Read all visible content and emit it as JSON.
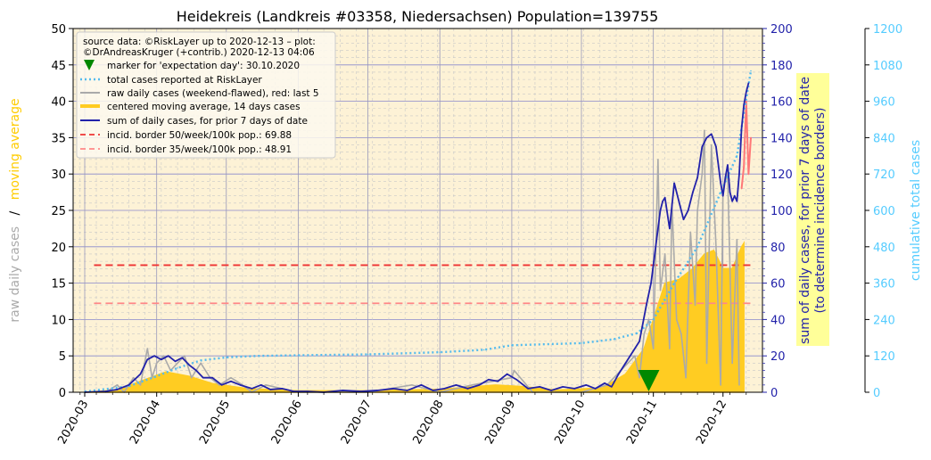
{
  "chart_data": {
    "type": "line",
    "title": "Heidekreis (Landkreis #03358, Niedersachsen) Population=139755",
    "x_range": [
      "2020-02-25",
      "2020-12-18"
    ],
    "x_ticks": [
      "2020-03",
      "2020-04",
      "2020-05",
      "2020-06",
      "2020-07",
      "2020-08",
      "2020-09",
      "2020-10",
      "2020-11",
      "2020-12"
    ],
    "axes": {
      "left": {
        "range": [
          0,
          50
        ],
        "ticks": [
          0,
          5,
          10,
          15,
          20,
          25,
          30,
          35,
          40,
          45,
          50
        ],
        "label_parts": [
          "raw daily cases",
          "/",
          "moving average"
        ],
        "colors": [
          "#aaaaaa",
          "#000000",
          "#ffcc00"
        ]
      },
      "right1": {
        "range": [
          0,
          200
        ],
        "ticks": [
          0,
          20,
          40,
          60,
          80,
          100,
          120,
          140,
          160,
          180,
          200
        ],
        "label_lines": [
          "sum of daily cases, for prior 7 days of date",
          "(to determine incidence borders)"
        ],
        "color": "#2222aa",
        "label_bg": "#ffff99"
      },
      "right2": {
        "range": [
          0,
          1200
        ],
        "ticks": [
          0,
          120,
          240,
          360,
          480,
          600,
          720,
          840,
          960,
          1080,
          1200
        ],
        "label": "cumulative total cases",
        "color": "#55ccff"
      }
    },
    "grid": true,
    "legend": {
      "position": "top-left",
      "source_lines": [
        "source data: ©RiskLayer up to 2020-12-13 – plot:",
        "©DrAndreasKruger (+contrib.) 2020-12-13 04:06"
      ],
      "entries": [
        {
          "label": "marker for 'expectation day': 30.10.2020",
          "style": "marker",
          "color": "#008800"
        },
        {
          "label": "total cases reported at RiskLayer",
          "style": "dotted",
          "color": "#55bbee"
        },
        {
          "label": "raw daily cases (weekend-flawed), red: last 5",
          "style": "line",
          "color": "#aaaaaa"
        },
        {
          "label": "centered moving average, 14 days cases",
          "style": "thick",
          "color": "#ffcc22"
        },
        {
          "label": "sum of daily cases, for prior 7 days of date",
          "style": "line",
          "color": "#2222aa"
        },
        {
          "label": "incid. border 50/week/100k pop.: 69.88",
          "style": "dashed",
          "color": "#ee3333"
        },
        {
          "label": "incid. border 35/week/100k pop.: 48.91",
          "style": "dashed",
          "color": "#ff8888"
        }
      ]
    },
    "incidence_borders": [
      {
        "value": 69.88,
        "axis": "right1",
        "color": "#ee3333",
        "x_from": "2020-03-05",
        "x_to": "2020-12-13"
      },
      {
        "value": 48.91,
        "axis": "right1",
        "color": "#ff8888",
        "x_from": "2020-03-05",
        "x_to": "2020-12-13"
      }
    ],
    "expectation_day": {
      "date": "2020-10-30",
      "value": 1.6,
      "axis": "left"
    },
    "series": [
      {
        "name": "sum of daily cases, for prior 7 days of date",
        "axis": "right1",
        "color": "#2222aa",
        "points": [
          [
            "2020-03-01",
            0
          ],
          [
            "2020-03-10",
            0.5
          ],
          [
            "2020-03-15",
            1.5
          ],
          [
            "2020-03-20",
            4
          ],
          [
            "2020-03-25",
            10
          ],
          [
            "2020-03-28",
            18
          ],
          [
            "2020-03-31",
            20
          ],
          [
            "2020-04-03",
            18
          ],
          [
            "2020-04-06",
            20
          ],
          [
            "2020-04-09",
            17
          ],
          [
            "2020-04-12",
            19
          ],
          [
            "2020-04-15",
            15
          ],
          [
            "2020-04-18",
            12
          ],
          [
            "2020-04-21",
            8
          ],
          [
            "2020-04-25",
            8
          ],
          [
            "2020-04-29",
            4
          ],
          [
            "2020-05-03",
            6
          ],
          [
            "2020-05-07",
            4
          ],
          [
            "2020-05-12",
            2
          ],
          [
            "2020-05-16",
            4
          ],
          [
            "2020-05-20",
            1.5
          ],
          [
            "2020-05-25",
            2
          ],
          [
            "2020-05-30",
            0.5
          ],
          [
            "2020-06-05",
            0.5
          ],
          [
            "2020-06-12",
            0
          ],
          [
            "2020-06-20",
            1
          ],
          [
            "2020-06-28",
            0.5
          ],
          [
            "2020-07-05",
            1
          ],
          [
            "2020-07-12",
            2
          ],
          [
            "2020-07-18",
            1
          ],
          [
            "2020-07-24",
            4
          ],
          [
            "2020-07-29",
            1
          ],
          [
            "2020-08-03",
            2
          ],
          [
            "2020-08-08",
            4
          ],
          [
            "2020-08-13",
            2
          ],
          [
            "2020-08-18",
            4
          ],
          [
            "2020-08-22",
            7
          ],
          [
            "2020-08-26",
            6
          ],
          [
            "2020-08-30",
            10
          ],
          [
            "2020-09-03",
            7
          ],
          [
            "2020-09-08",
            2
          ],
          [
            "2020-09-13",
            3
          ],
          [
            "2020-09-18",
            1
          ],
          [
            "2020-09-23",
            3
          ],
          [
            "2020-09-28",
            2
          ],
          [
            "2020-10-03",
            4
          ],
          [
            "2020-10-07",
            2
          ],
          [
            "2020-10-11",
            5
          ],
          [
            "2020-10-14",
            3
          ],
          [
            "2020-10-17",
            10
          ],
          [
            "2020-10-20",
            16
          ],
          [
            "2020-10-23",
            22
          ],
          [
            "2020-10-26",
            28
          ],
          [
            "2020-10-29",
            48
          ],
          [
            "2020-10-31",
            60
          ],
          [
            "2020-11-02",
            80
          ],
          [
            "2020-11-04",
            100
          ],
          [
            "2020-11-05",
            105
          ],
          [
            "2020-11-06",
            107
          ],
          [
            "2020-11-08",
            90
          ],
          [
            "2020-11-10",
            115
          ],
          [
            "2020-11-12",
            105
          ],
          [
            "2020-11-14",
            95
          ],
          [
            "2020-11-16",
            100
          ],
          [
            "2020-11-18",
            110
          ],
          [
            "2020-11-20",
            118
          ],
          [
            "2020-11-22",
            135
          ],
          [
            "2020-11-24",
            140
          ],
          [
            "2020-11-26",
            142
          ],
          [
            "2020-11-28",
            135
          ],
          [
            "2020-11-30",
            115
          ],
          [
            "2020-12-01",
            108
          ],
          [
            "2020-12-02",
            118
          ],
          [
            "2020-12-03",
            125
          ],
          [
            "2020-12-04",
            110
          ],
          [
            "2020-12-05",
            105
          ],
          [
            "2020-12-06",
            108
          ],
          [
            "2020-12-07",
            105
          ],
          [
            "2020-12-08",
            120
          ],
          [
            "2020-12-09",
            145
          ],
          [
            "2020-12-10",
            158
          ],
          [
            "2020-12-11",
            165
          ],
          [
            "2020-12-12",
            170
          ]
        ]
      },
      {
        "name": "total cases reported at RiskLayer",
        "axis": "right2",
        "color": "#55bbee",
        "points": [
          [
            "2020-03-01",
            2
          ],
          [
            "2020-03-20",
            20
          ],
          [
            "2020-03-31",
            50
          ],
          [
            "2020-04-10",
            80
          ],
          [
            "2020-04-20",
            105
          ],
          [
            "2020-05-01",
            115
          ],
          [
            "2020-05-15",
            120
          ],
          [
            "2020-06-01",
            122
          ],
          [
            "2020-07-01",
            125
          ],
          [
            "2020-08-01",
            132
          ],
          [
            "2020-08-20",
            140
          ],
          [
            "2020-09-01",
            155
          ],
          [
            "2020-10-01",
            162
          ],
          [
            "2020-10-15",
            175
          ],
          [
            "2020-10-25",
            195
          ],
          [
            "2020-11-01",
            240
          ],
          [
            "2020-11-10",
            360
          ],
          [
            "2020-11-20",
            480
          ],
          [
            "2020-11-30",
            660
          ],
          [
            "2020-12-07",
            780
          ],
          [
            "2020-12-13",
            1060
          ]
        ]
      },
      {
        "name": "raw daily cases (weekend-flawed), red: last 5",
        "axis": "left",
        "color": "#aaaaaa",
        "points": [
          [
            "2020-03-10",
            0
          ],
          [
            "2020-03-15",
            1
          ],
          [
            "2020-03-18",
            0
          ],
          [
            "2020-03-22",
            2
          ],
          [
            "2020-03-25",
            1
          ],
          [
            "2020-03-28",
            6
          ],
          [
            "2020-03-30",
            2
          ],
          [
            "2020-04-01",
            4
          ],
          [
            "2020-04-04",
            5
          ],
          [
            "2020-04-07",
            3
          ],
          [
            "2020-04-10",
            4
          ],
          [
            "2020-04-13",
            5
          ],
          [
            "2020-04-16",
            2
          ],
          [
            "2020-04-20",
            4
          ],
          [
            "2020-04-24",
            2
          ],
          [
            "2020-04-28",
            1
          ],
          [
            "2020-05-03",
            2
          ],
          [
            "2020-05-08",
            1
          ],
          [
            "2020-05-12",
            0
          ],
          [
            "2020-05-18",
            1
          ],
          [
            "2020-06-01",
            0
          ],
          [
            "2020-06-15",
            0
          ],
          [
            "2020-07-01",
            0
          ],
          [
            "2020-07-20",
            1
          ],
          [
            "2020-08-01",
            0
          ],
          [
            "2020-08-15",
            1
          ],
          [
            "2020-09-01",
            2
          ],
          [
            "2020-09-02",
            3
          ],
          [
            "2020-09-10",
            0
          ],
          [
            "2020-09-20",
            0
          ],
          [
            "2020-10-01",
            0
          ],
          [
            "2020-10-12",
            1
          ],
          [
            "2020-10-15",
            2
          ],
          [
            "2020-10-18",
            3
          ],
          [
            "2020-10-21",
            4
          ],
          [
            "2020-10-24",
            5
          ],
          [
            "2020-10-26",
            2
          ],
          [
            "2020-10-28",
            8
          ],
          [
            "2020-10-30",
            10
          ],
          [
            "2020-11-01",
            6
          ],
          [
            "2020-11-03",
            32
          ],
          [
            "2020-11-04",
            14
          ],
          [
            "2020-11-06",
            19
          ],
          [
            "2020-11-08",
            6
          ],
          [
            "2020-11-09",
            26
          ],
          [
            "2020-11-11",
            10
          ],
          [
            "2020-11-13",
            8
          ],
          [
            "2020-11-15",
            2
          ],
          [
            "2020-11-17",
            22
          ],
          [
            "2020-11-19",
            12
          ],
          [
            "2020-11-20",
            25
          ],
          [
            "2020-11-22",
            30
          ],
          [
            "2020-11-23",
            36
          ],
          [
            "2020-11-24",
            4
          ],
          [
            "2020-11-26",
            34
          ],
          [
            "2020-11-28",
            20
          ],
          [
            "2020-11-30",
            1
          ],
          [
            "2020-12-01",
            28
          ],
          [
            "2020-12-03",
            30
          ],
          [
            "2020-12-05",
            4
          ],
          [
            "2020-12-07",
            21
          ],
          [
            "2020-12-08",
            1
          ]
        ]
      },
      {
        "name": "raw daily cases, last 5",
        "axis": "left",
        "color": "#ff7777",
        "points": [
          [
            "2020-12-09",
            28
          ],
          [
            "2020-12-10",
            31
          ],
          [
            "2020-12-11",
            40
          ],
          [
            "2020-12-12",
            30
          ],
          [
            "2020-12-13",
            35
          ]
        ]
      },
      {
        "name": "centered moving average, 14 days cases",
        "axis": "left",
        "color": "#ffcc22",
        "points": [
          [
            "2020-03-01",
            0
          ],
          [
            "2020-03-15",
            0.3
          ],
          [
            "2020-03-25",
            1.5
          ],
          [
            "2020-04-05",
            2.8
          ],
          [
            "2020-04-15",
            2.2
          ],
          [
            "2020-04-25",
            1.2
          ],
          [
            "2020-05-10",
            0.5
          ],
          [
            "2020-06-01",
            0.2
          ],
          [
            "2020-07-01",
            0.2
          ],
          [
            "2020-08-01",
            0.4
          ],
          [
            "2020-08-25",
            1
          ],
          [
            "2020-09-05",
            0.8
          ],
          [
            "2020-09-20",
            0.3
          ],
          [
            "2020-10-10",
            0.6
          ],
          [
            "2020-10-20",
            2.5
          ],
          [
            "2020-10-28",
            6
          ],
          [
            "2020-11-02",
            11
          ],
          [
            "2020-11-06",
            15
          ],
          [
            "2020-11-12",
            15.5
          ],
          [
            "2020-11-18",
            17
          ],
          [
            "2020-11-23",
            19
          ],
          [
            "2020-11-27",
            19.5
          ],
          [
            "2020-12-01",
            17
          ],
          [
            "2020-12-05",
            17
          ],
          [
            "2020-12-09",
            20
          ],
          [
            "2020-12-10",
            20.5
          ]
        ]
      }
    ]
  }
}
